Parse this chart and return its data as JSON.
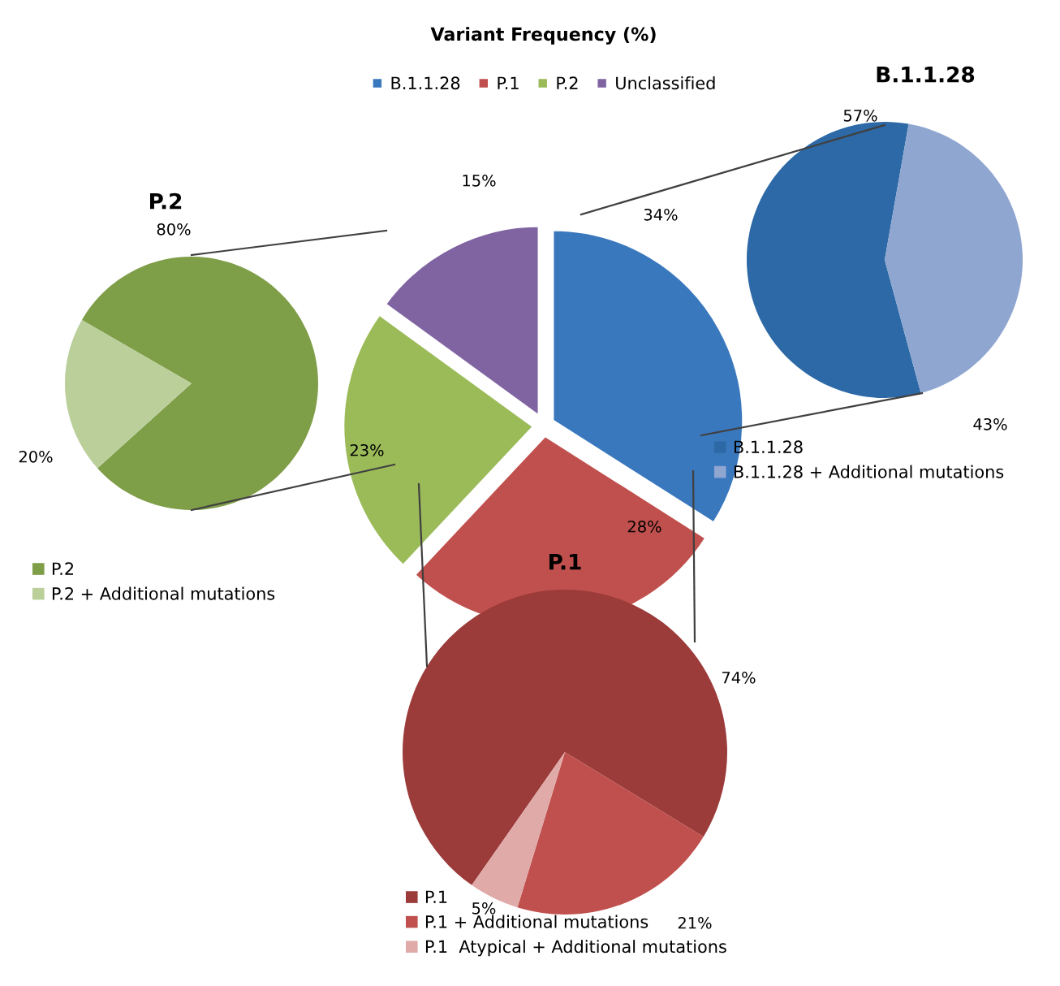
{
  "chart_data": [
    {
      "type": "pie",
      "title": "Variant Frequency (%)",
      "categories": [
        "B.1.1.28",
        "P.1",
        "P.2",
        "Unclassified"
      ],
      "values": [
        34,
        28,
        23,
        15
      ],
      "colors": [
        "#3a78be",
        "#c0504d",
        "#9bbb59",
        "#8064a2"
      ],
      "value_labels": [
        "34%",
        "28%",
        "23%",
        "15%"
      ],
      "legend": "top"
    },
    {
      "type": "pie",
      "title": "B.1.1.28",
      "categories": [
        "B.1.1.28",
        "B.1.1.28 + Additional mutations"
      ],
      "values": [
        57,
        43
      ],
      "colors": [
        "#2c69a6",
        "#8fa6d0"
      ],
      "value_labels": [
        "57%",
        "43%"
      ],
      "legend": "bottom"
    },
    {
      "type": "pie",
      "title": "P.2",
      "categories": [
        "P.2",
        "P.2 + Additional mutations"
      ],
      "values": [
        80,
        20
      ],
      "colors": [
        "#7f9e48",
        "#bacf9a"
      ],
      "value_labels": [
        "80%",
        "20%"
      ],
      "legend": "bottom"
    },
    {
      "type": "pie",
      "title": "P.1",
      "categories": [
        "P.1",
        "P.1 + Additional mutations",
        "P.1  Atypical + Additional mutations"
      ],
      "values": [
        74,
        21,
        5
      ],
      "colors": [
        "#9b3b3a",
        "#c0504d",
        "#e0aaa9"
      ],
      "value_labels": [
        "74%",
        "21%",
        "5%"
      ],
      "legend": "bottom"
    }
  ]
}
